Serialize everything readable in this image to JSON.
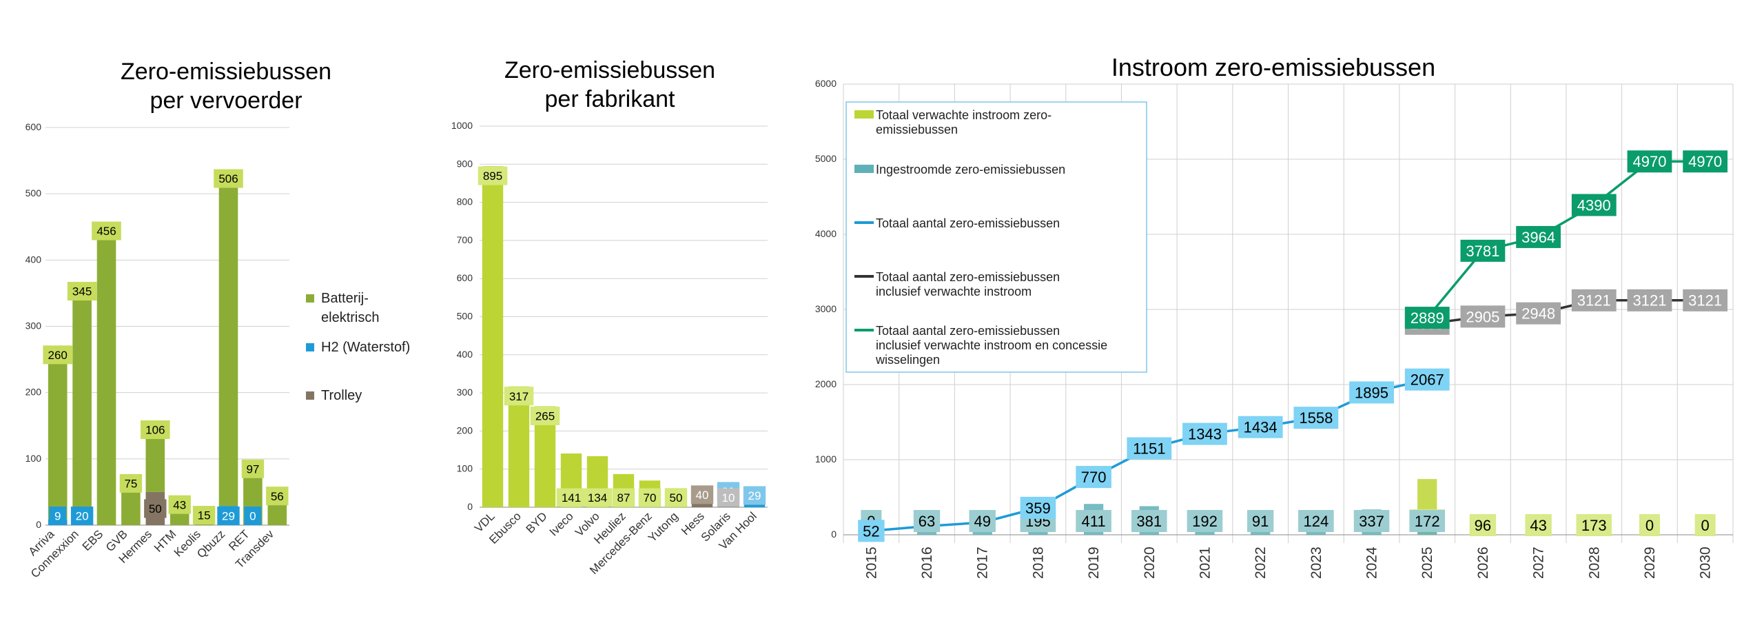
{
  "chart_data": [
    {
      "type": "bar",
      "title": [
        "Zero-emissiebussen",
        "per vervoerder"
      ],
      "ylim": [
        0,
        600
      ],
      "yticks": [
        0,
        100,
        200,
        300,
        400,
        500,
        600
      ],
      "grid": true,
      "legend_position": "right",
      "categories": [
        "Arriva",
        "Connexxion",
        "EBS",
        "GVB",
        "Hermes",
        "HTM",
        "Keolis",
        "Qbuzz",
        "RET",
        "Transdev"
      ],
      "series": [
        {
          "name": "Batterij-elektrisch",
          "color": "#8cad35",
          "values": [
            260,
            345,
            456,
            75,
            106,
            43,
            15,
            506,
            97,
            56
          ]
        },
        {
          "name": "H2 (Waterstof)",
          "color": "#1e9bd7",
          "values": [
            9,
            20,
            0,
            0,
            0,
            0,
            0,
            29,
            0,
            0
          ]
        },
        {
          "name": "Trolley",
          "color": "#847563",
          "values": [
            0,
            0,
            0,
            0,
            50,
            0,
            0,
            0,
            0,
            0
          ]
        }
      ],
      "data_labels": [
        {
          "category": "Arriva",
          "series": "Batterij-elektrisch",
          "text": "260"
        },
        {
          "category": "Connexxion",
          "series": "Batterij-elektrisch",
          "text": "345"
        },
        {
          "category": "EBS",
          "series": "Batterij-elektrisch",
          "text": "456"
        },
        {
          "category": "GVB",
          "series": "Batterij-elektrisch",
          "text": "75"
        },
        {
          "category": "Hermes",
          "series": "Batterij-elektrisch",
          "text": "106"
        },
        {
          "category": "HTM",
          "series": "Batterij-elektrisch",
          "text": "43"
        },
        {
          "category": "Keolis",
          "series": "Batterij-elektrisch",
          "text": "15"
        },
        {
          "category": "Qbuzz",
          "series": "Batterij-elektrisch",
          "text": "506"
        },
        {
          "category": "RET",
          "series": "Batterij-elektrisch",
          "text": "97"
        },
        {
          "category": "Transdev",
          "series": "Batterij-elektrisch",
          "text": "56"
        },
        {
          "category": "Arriva",
          "series": "H2 (Waterstof)",
          "text": "9"
        },
        {
          "category": "Connexxion",
          "series": "H2 (Waterstof)",
          "text": "20"
        },
        {
          "category": "Qbuzz",
          "series": "H2 (Waterstof)",
          "text": "29"
        },
        {
          "category": "RET",
          "series": "H2 (Waterstof)",
          "text": "0"
        },
        {
          "category": "Hermes",
          "series": "Trolley",
          "text": "50"
        }
      ],
      "legend": [
        {
          "label": [
            "Batterij-",
            "elektrisch"
          ],
          "color": "#8cad35"
        },
        {
          "label": [
            "H2 (Waterstof)"
          ],
          "color": "#1e9bd7"
        },
        {
          "label": [
            "Trolley"
          ],
          "color": "#847563"
        }
      ]
    },
    {
      "type": "bar",
      "title": [
        "Zero-emissiebussen",
        "per fabrikant"
      ],
      "ylim": [
        0,
        1000
      ],
      "yticks": [
        0,
        100,
        200,
        300,
        400,
        500,
        600,
        700,
        800,
        900,
        1000
      ],
      "grid": true,
      "categories": [
        "VDL",
        "Ebusco",
        "BYD",
        "Iveco",
        "Volvo",
        "Heuliez",
        "Mercedes-Benz",
        "Yutong",
        "Hess",
        "Solaris",
        "Van Hool"
      ],
      "series": [
        {
          "name": "Batterij-elektrisch",
          "color": "#bcd534",
          "values": [
            895,
            317,
            265,
            141,
            134,
            87,
            70,
            50,
            0,
            0,
            0
          ]
        },
        {
          "name": "H2 (Waterstof)",
          "color": "#1e9bd7",
          "values": [
            0,
            0,
            0,
            0,
            0,
            0,
            0,
            0,
            0,
            29,
            29
          ]
        },
        {
          "name": "Trolley",
          "color": "#847563",
          "values": [
            0,
            0,
            0,
            0,
            0,
            0,
            0,
            0,
            40,
            10,
            0
          ]
        }
      ],
      "data_labels": [
        {
          "category": "VDL",
          "text": "895"
        },
        {
          "category": "Ebusco",
          "text": "317"
        },
        {
          "category": "BYD",
          "text": "265"
        },
        {
          "category": "Iveco",
          "text": "141"
        },
        {
          "category": "Volvo",
          "text": "134"
        },
        {
          "category": "Heuliez",
          "text": "87"
        },
        {
          "category": "Mercedes-Benz",
          "text": "70"
        },
        {
          "category": "Yutong",
          "text": "50"
        },
        {
          "category": "Hess",
          "text": "40"
        },
        {
          "category": "Solaris",
          "text": "29"
        },
        {
          "category": "Solaris",
          "text": "10"
        },
        {
          "category": "Van Hool",
          "text": "29"
        }
      ]
    },
    {
      "type": "line",
      "title": "Instroom zero-emissiebussen",
      "ylim": [
        0,
        6000
      ],
      "yticks": [
        0,
        1000,
        2000,
        3000,
        4000,
        5000,
        6000
      ],
      "grid": true,
      "legend_position": "top-left",
      "x": [
        "2015",
        "2016",
        "2017",
        "2018",
        "2019",
        "2020",
        "2021",
        "2022",
        "2023",
        "2024",
        "2025",
        "2026",
        "2027",
        "2028",
        "2029",
        "2030"
      ],
      "series": [
        {
          "name": "Totaal verwachte instroom zero-emissiebussen",
          "kind": "bar",
          "color": "#bcd534",
          "values": [
            null,
            null,
            null,
            null,
            null,
            null,
            null,
            null,
            null,
            null,
            742,
            96,
            43,
            173,
            0,
            0
          ],
          "labels": [
            "",
            "",
            "",
            "",
            "",
            "",
            "",
            "",
            "",
            "",
            "742",
            "96",
            "43",
            "173",
            "0",
            "0"
          ]
        },
        {
          "name": "Ingestroomde zero-emissiebussen",
          "kind": "bar",
          "color": "#5fb0b7",
          "values": [
            0,
            63,
            49,
            195,
            411,
            381,
            192,
            91,
            124,
            337,
            172,
            null,
            null,
            null,
            null,
            null
          ],
          "labels": [
            "0",
            "63",
            "49",
            "195",
            "411",
            "381",
            "192",
            "91",
            "124",
            "337",
            "172",
            "",
            "",
            "",
            "",
            ""
          ]
        },
        {
          "name": "Totaal aantal zero-emissiebussen",
          "kind": "line",
          "color": "#1e9bd7",
          "values": [
            52,
            115,
            164,
            359,
            770,
            1151,
            1343,
            1434,
            1558,
            1895,
            2067,
            null,
            null,
            null,
            null,
            null
          ],
          "labels": [
            "52",
            "",
            "",
            "359",
            "770",
            "1151",
            "1343",
            "1434",
            "1558",
            "1895",
            "2067",
            "",
            "",
            "",
            "",
            ""
          ]
        },
        {
          "name": "Totaal aantal zero-emissiebussen inclusief verwachte instroom",
          "kind": "line",
          "color": "#333333",
          "values": [
            null,
            null,
            null,
            null,
            null,
            null,
            null,
            null,
            null,
            null,
            2809,
            2905,
            2948,
            3121,
            3121,
            3121
          ],
          "labels": [
            "",
            "",
            "",
            "",
            "",
            "",
            "",
            "",
            "",
            "",
            "2809",
            "2905",
            "2948",
            "3121",
            "3121",
            "3121"
          ]
        },
        {
          "name": "Totaal aantal zero-emissiebussen inclusief verwachte instroom en  concessie wisselingen",
          "kind": "line",
          "color": "#0a9c6a",
          "values": [
            null,
            null,
            null,
            null,
            null,
            null,
            null,
            null,
            null,
            null,
            2889,
            3781,
            3964,
            4390,
            4970,
            4970
          ],
          "labels": [
            "",
            "",
            "",
            "",
            "",
            "",
            "",
            "",
            "",
            "",
            "2889",
            "3781",
            "3964",
            "4390",
            "4970",
            "4970"
          ]
        }
      ],
      "legend": [
        {
          "label": [
            "Totaal verwachte instroom zero-",
            "emissiebussen"
          ],
          "kind": "bar",
          "color": "#bcd534"
        },
        {
          "label": [
            "Ingestroomde zero-emissiebussen"
          ],
          "kind": "bar",
          "color": "#5fb0b7"
        },
        {
          "label": [
            "Totaal aantal zero-emissiebussen"
          ],
          "kind": "line",
          "color": "#1e9bd7"
        },
        {
          "label": [
            "Totaal aantal zero-emissiebussen",
            "inclusief verwachte instroom"
          ],
          "kind": "line",
          "color": "#333333"
        },
        {
          "label": [
            "Totaal aantal zero-emissiebussen",
            "inclusief verwachte instroom en  concessie",
            "wisselingen"
          ],
          "kind": "line",
          "color": "#0a9c6a"
        }
      ],
      "label_colors": {
        "Totaal verwachte instroom zero-emissiebussen": {
          "bg": "#d8ea8a",
          "fg": "#000000"
        },
        "Ingestroomde zero-emissiebussen": {
          "bg": "#9ccdd1",
          "fg": "#000000"
        },
        "Totaal aantal zero-emissiebussen": {
          "bg": "#7fd3f4",
          "fg": "#000000"
        },
        "Totaal aantal zero-emissiebussen inclusief verwachte instroom": {
          "bg": "#a6a6a6",
          "fg": "#ffffff"
        },
        "Totaal aantal zero-emissiebussen inclusief verwachte instroom en  concessie wisselingen": {
          "bg": "#0a9c6a",
          "fg": "#ffffff"
        }
      }
    }
  ]
}
